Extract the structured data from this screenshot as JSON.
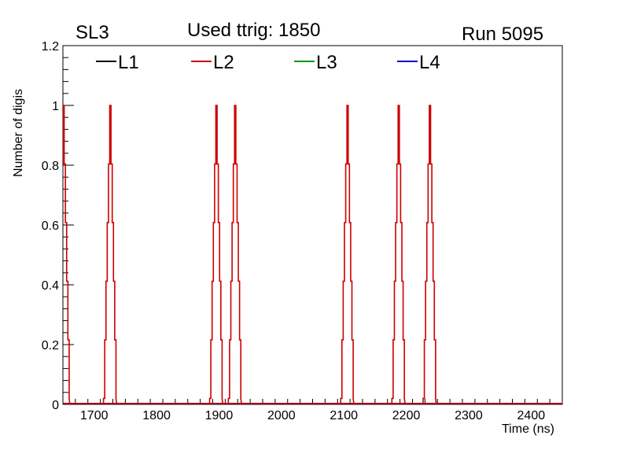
{
  "header": {
    "left": "SL3",
    "center": "Used ttrig: 1850",
    "right": "Run 5095"
  },
  "chart_data": {
    "type": "line",
    "xlabel": "Time (ns)",
    "ylabel": "Number of digis",
    "xlim": [
      1650,
      2450
    ],
    "ylim": [
      0,
      1.2
    ],
    "xticks": [
      1700,
      1800,
      1900,
      2000,
      2100,
      2200,
      2300,
      2400
    ],
    "yticks": [
      0,
      0.2,
      0.4,
      0.6,
      0.8,
      1,
      1.2
    ],
    "legend_position": "top",
    "series": [
      {
        "name": "L1",
        "color": "#000000",
        "peaks": []
      },
      {
        "name": "L2",
        "color": "#cc0000",
        "peaks": [
          1650,
          1725,
          1895,
          1925,
          2105,
          2187,
          2237
        ]
      },
      {
        "name": "L3",
        "color": "#009900",
        "peaks": []
      },
      {
        "name": "L4",
        "color": "#0000cc",
        "peaks": []
      }
    ]
  }
}
